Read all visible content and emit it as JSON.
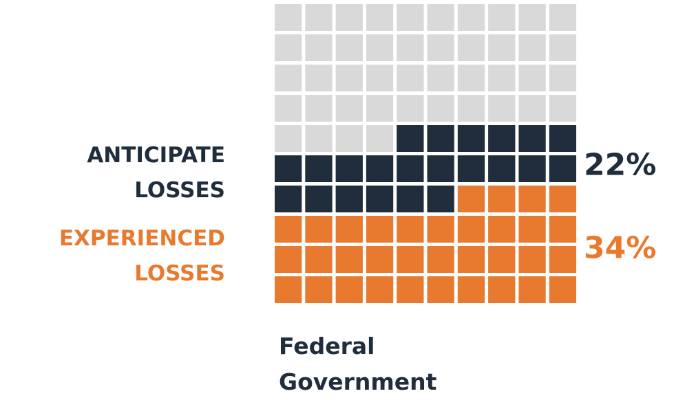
{
  "chart_data": {
    "type": "waffle",
    "categories": [
      "Federal Government"
    ],
    "rows": 10,
    "cols": 10,
    "empty_color": "#d9d9d9",
    "series": [
      {
        "name": "ANTICIPATE LOSSES",
        "color": "#1f2d3d",
        "values": [
          22
        ],
        "value_labels": [
          "22%"
        ]
      },
      {
        "name": "EXPERIENCED LOSSES",
        "color": "#e87a30",
        "values": [
          34
        ],
        "value_labels": [
          "34%"
        ]
      }
    ]
  }
}
